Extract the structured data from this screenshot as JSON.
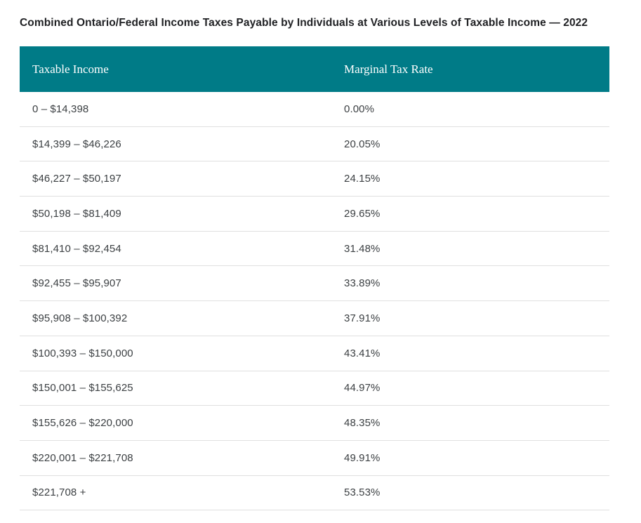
{
  "page": {
    "title": "Combined Ontario/Federal Income Taxes Payable by Individuals at Various Levels of Taxable Income — 2022"
  },
  "table": {
    "columns": [
      "Taxable Income",
      "Marginal Tax Rate"
    ],
    "rows": [
      {
        "income": "0 – $14,398",
        "rate": "0.00%"
      },
      {
        "income": "$14,399 – $46,226",
        "rate": "20.05%"
      },
      {
        "income": "$46,227 – $50,197",
        "rate": "24.15%"
      },
      {
        "income": "$50,198 – $81,409",
        "rate": "29.65%"
      },
      {
        "income": "$81,410 – $92,454",
        "rate": "31.48%"
      },
      {
        "income": "$92,455 – $95,907",
        "rate": "33.89%"
      },
      {
        "income": "$95,908 – $100,392",
        "rate": "37.91%"
      },
      {
        "income": "$100,393 – $150,000",
        "rate": "43.41%"
      },
      {
        "income": "$150,001 – $155,625",
        "rate": "44.97%"
      },
      {
        "income": "$155,626 – $220,000",
        "rate": "48.35%"
      },
      {
        "income": "$220,001 – $221,708",
        "rate": "49.91%"
      },
      {
        "income": "$221,708 +",
        "rate": "53.53%"
      }
    ]
  },
  "colors": {
    "header_background": "#007B87",
    "header_text": "#FFFFFF",
    "body_text": "#3C4043",
    "divider": "#E0E0E0",
    "title_text": "#202124"
  },
  "chart_data": {
    "type": "table",
    "title": "Combined Ontario/Federal Income Taxes Payable by Individuals at Various Levels of Taxable Income — 2022",
    "columns": [
      "Taxable Income",
      "Marginal Tax Rate"
    ],
    "categories": [
      "0 – $14,398",
      "$14,399 – $46,226",
      "$46,227 – $50,197",
      "$50,198 – $81,409",
      "$81,410 – $92,454",
      "$92,455 – $95,907",
      "$95,908 – $100,392",
      "$100,393 – $150,000",
      "$150,001 – $155,625",
      "$155,626 – $220,000",
      "$220,001 – $221,708",
      "$221,708 +"
    ],
    "values": [
      0.0,
      20.05,
      24.15,
      29.65,
      31.48,
      33.89,
      37.91,
      43.41,
      44.97,
      48.35,
      49.91,
      53.53
    ],
    "value_unit": "%",
    "legend_position": "none",
    "grid": "horizontal-row-dividers"
  }
}
